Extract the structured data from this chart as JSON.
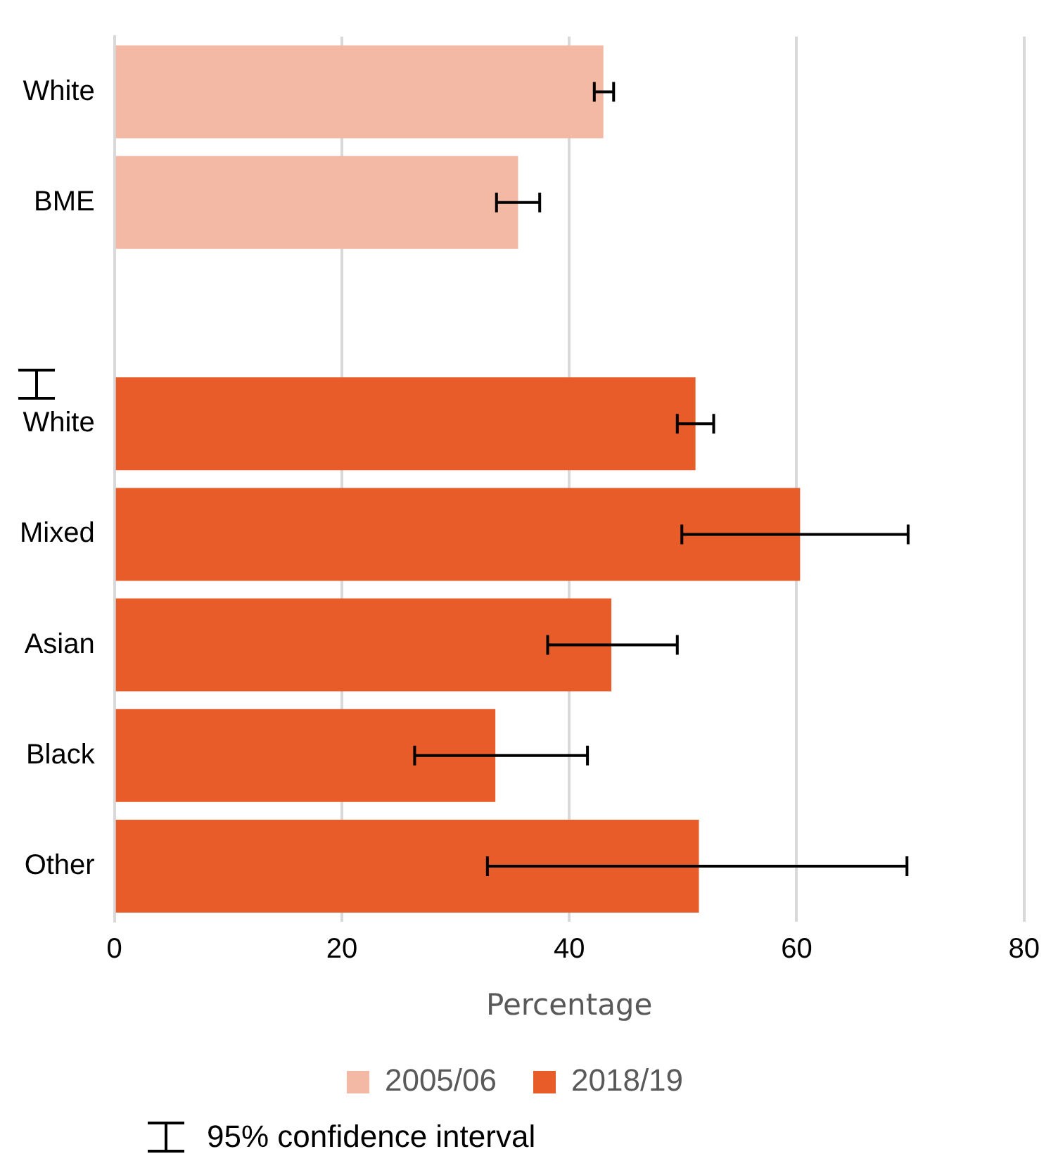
{
  "chart_data": {
    "type": "bar",
    "orientation": "horizontal",
    "xlabel": "Percentage",
    "categories": [
      "White",
      "BME",
      null,
      "White",
      "Mixed",
      "Asian",
      "Black",
      "Other"
    ],
    "series": [
      {
        "name": "2005/06",
        "color": "#f4b9a5",
        "values": [
          43.0,
          35.5,
          null,
          null,
          null,
          null,
          null,
          null
        ],
        "errors": [
          [
            42.2,
            43.9
          ],
          [
            33.6,
            37.4
          ],
          null,
          null,
          null,
          null,
          null,
          null
        ]
      },
      {
        "name": "2018/19",
        "color": "#e85c2a",
        "values": [
          null,
          null,
          null,
          51.1,
          60.3,
          43.7,
          33.5,
          51.4
        ],
        "errors": [
          null,
          null,
          null,
          [
            49.5,
            52.7
          ],
          [
            49.9,
            69.8
          ],
          [
            38.1,
            49.5
          ],
          [
            26.4,
            41.6
          ],
          [
            32.8,
            69.7
          ]
        ]
      }
    ],
    "xlim": [
      0,
      80
    ],
    "xticks": [
      0,
      20,
      40,
      60,
      80
    ],
    "grid": "x",
    "legend": "bottom",
    "annotations": [
      "95% confidence interval"
    ]
  }
}
